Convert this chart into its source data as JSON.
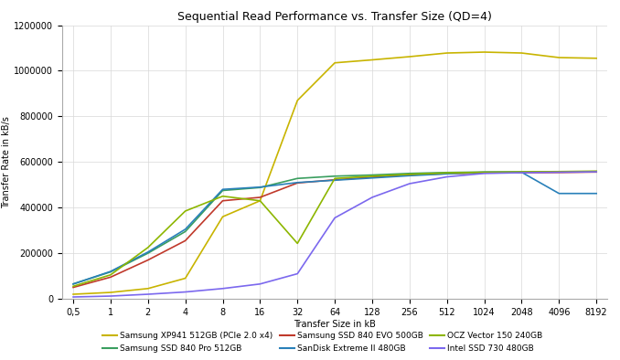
{
  "title": "Sequential Read Performance vs. Transfer Size (QD=4)",
  "xlabel": "Transfer Size in kB",
  "ylabel": "Transfer Rate in kB/s",
  "x_labels": [
    "0,5",
    "1",
    "2",
    "4",
    "8",
    "16",
    "32",
    "64",
    "128",
    "256",
    "512",
    "1024",
    "2048",
    "4096",
    "8192"
  ],
  "ylim": [
    0,
    1200000
  ],
  "yticks": [
    0,
    200000,
    400000,
    600000,
    800000,
    1000000,
    1200000
  ],
  "series": [
    {
      "label": "Samsung XP941 512GB (PCIe 2.0 x4)",
      "color": "#c8b400",
      "values": [
        20000,
        28000,
        45000,
        90000,
        360000,
        430000,
        870000,
        1035000,
        1048000,
        1062000,
        1078000,
        1082000,
        1078000,
        1058000,
        1055000
      ]
    },
    {
      "label": "Samsung SSD 840 Pro 512GB",
      "color": "#3a9e5f",
      "values": [
        65000,
        118000,
        200000,
        295000,
        475000,
        488000,
        528000,
        538000,
        543000,
        550000,
        554000,
        556000,
        557000,
        557000,
        558000
      ]
    },
    {
      "label": "Samsung SSD 840 EVO 500GB",
      "color": "#c0392b",
      "values": [
        50000,
        95000,
        170000,
        255000,
        430000,
        445000,
        508000,
        522000,
        533000,
        543000,
        549000,
        552000,
        553000,
        554000,
        556000
      ]
    },
    {
      "label": "SanDisk Extreme II 480GB",
      "color": "#2980b9",
      "values": [
        65000,
        120000,
        205000,
        305000,
        480000,
        490000,
        510000,
        520000,
        530000,
        540000,
        548000,
        555000,
        555000,
        462000,
        462000
      ]
    },
    {
      "label": "OCZ Vector 150 240GB",
      "color": "#8db600",
      "values": [
        55000,
        105000,
        225000,
        385000,
        450000,
        430000,
        243000,
        528000,
        538000,
        546000,
        552000,
        555000,
        557000,
        558000,
        560000
      ]
    },
    {
      "label": "Intel SSD 730 480GB",
      "color": "#7b68ee",
      "values": [
        8000,
        12000,
        20000,
        30000,
        45000,
        65000,
        110000,
        355000,
        445000,
        505000,
        535000,
        550000,
        553000,
        555000,
        557000
      ]
    }
  ],
  "background_color": "#ffffff",
  "grid_color": "#d8d8d8",
  "title_fontsize": 9,
  "legend_fontsize": 6.5,
  "axis_label_fontsize": 7,
  "tick_fontsize": 7
}
